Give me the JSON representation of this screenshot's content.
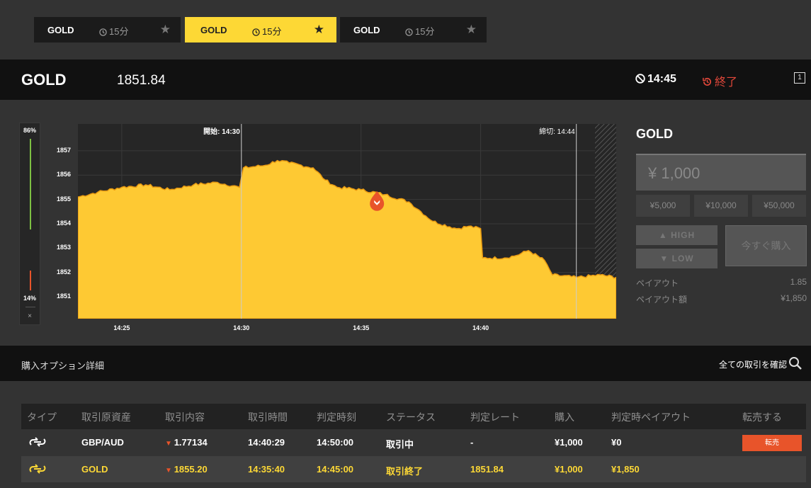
{
  "tabs": [
    {
      "asset": "GOLD",
      "duration": "15分",
      "active": false
    },
    {
      "asset": "GOLD",
      "duration": "15分",
      "active": true
    },
    {
      "asset": "GOLD",
      "duration": "15分",
      "active": false
    }
  ],
  "header": {
    "asset": "GOLD",
    "price": "1851.84",
    "time": "14:45",
    "status": "終了",
    "expand_label": "1"
  },
  "sentiment": {
    "high_pct": "86%",
    "low_pct": "14%",
    "close": "×",
    "high_color": "#7dc142",
    "low_color": "#e8542a"
  },
  "chart_data": {
    "type": "area",
    "color": "#fec933",
    "y_ticks": [
      "1857",
      "1856",
      "1855",
      "1854",
      "1853",
      "1852",
      "1851"
    ],
    "x_ticks": [
      "14:25",
      "14:30",
      "14:35",
      "14:40"
    ],
    "ylim": [
      1850.1,
      1858.1
    ],
    "xlim": [
      "14:23:10",
      "14:45:40"
    ],
    "start_label": "開始: 14:30",
    "end_label": "締切: 14:44",
    "entry_point": {
      "time": "14:35:40",
      "value": 1855.2
    },
    "series": [
      {
        "x": [
          "14:23:10",
          "14:24:00",
          "14:25:00",
          "14:26:00",
          "14:27:00",
          "14:28:00",
          "14:29:00",
          "14:29:55",
          "14:30:05",
          "14:31:00",
          "14:31:30",
          "14:32:00",
          "14:33:00",
          "14:33:30",
          "14:34:00",
          "14:35:00",
          "14:36:00",
          "14:37:00",
          "14:37:30",
          "14:38:00",
          "14:39:00",
          "14:39:30",
          "14:40:00",
          "14:40:05",
          "14:41:00",
          "14:41:30",
          "14:42:00",
          "14:42:40",
          "14:43:00",
          "14:44:00",
          "14:45:00",
          "14:45:40"
        ],
        "values": [
          1855.1,
          1855.3,
          1855.5,
          1855.6,
          1855.4,
          1855.6,
          1855.7,
          1855.5,
          1856.3,
          1856.4,
          1856.6,
          1856.5,
          1856.3,
          1855.8,
          1855.5,
          1855.4,
          1855.2,
          1854.9,
          1854.5,
          1854.1,
          1853.8,
          1853.9,
          1853.8,
          1852.6,
          1852.6,
          1852.7,
          1852.9,
          1852.5,
          1851.9,
          1851.8,
          1851.9,
          1851.8
        ]
      }
    ]
  },
  "panel": {
    "asset": "GOLD",
    "amount": "¥ 1,000",
    "presets": [
      "¥5,000",
      "¥10,000",
      "¥50,000"
    ],
    "high_label": "HIGH",
    "low_label": "LOW",
    "buy_label": "今すぐ購入",
    "payout_label": "ペイアウト",
    "payout_value": "1.85",
    "payout_amount_label": "ペイアウト額",
    "payout_amount_value": "¥1,850"
  },
  "details": {
    "title": "購入オプション詳細",
    "view_all": "全ての取引を確認"
  },
  "table": {
    "headers": [
      "タイプ",
      "取引原資産",
      "取引内容",
      "取引時間",
      "判定時刻",
      "ステータス",
      "判定レート",
      "購入",
      "判定時ペイアウト",
      "転売する"
    ],
    "rows": [
      {
        "asset": "GBP/AUD",
        "content": "1.77134",
        "time": "14:40:29",
        "judge_time": "14:50:00",
        "status": "取引中",
        "rate": "-",
        "purchase": "¥1,000",
        "payout": "¥0",
        "resell": "転売"
      },
      {
        "asset": "GOLD",
        "content": "1855.20",
        "time": "14:35:40",
        "judge_time": "14:45:00",
        "status": "取引終了",
        "rate": "1851.84",
        "purchase": "¥1,000",
        "payout": "¥1,850",
        "resell": ""
      }
    ]
  }
}
